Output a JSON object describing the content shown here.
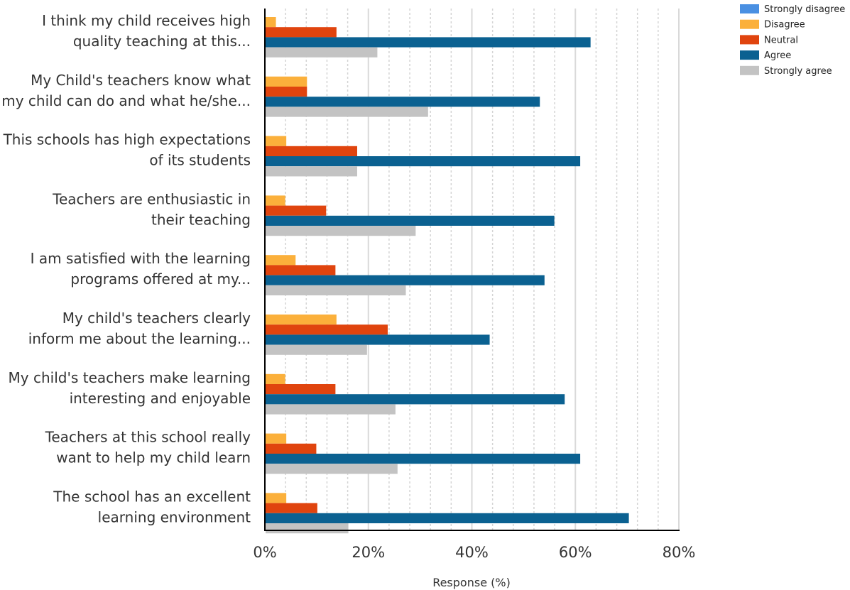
{
  "chart_data": {
    "type": "bar",
    "orientation": "horizontal",
    "xlabel": "Response (%)",
    "ylabel": "",
    "xlim": [
      0,
      80
    ],
    "x_ticks": [
      0,
      20,
      40,
      60,
      80
    ],
    "x_tick_labels": [
      "0%",
      "20%",
      "40%",
      "60%",
      "80%"
    ],
    "grid": true,
    "legend_position": "top-right",
    "categories": [
      [
        "I think my child receives high",
        "quality teaching at this..."
      ],
      [
        "My Child's teachers know what",
        "my child can do and what he/she..."
      ],
      [
        "This schools has high expectations",
        "of its students"
      ],
      [
        "Teachers are enthusiastic in",
        "their teaching"
      ],
      [
        "I am satisfied with the learning",
        "programs offered at my..."
      ],
      [
        "My child's teachers clearly",
        "inform me about the learning..."
      ],
      [
        "My child's teachers make learning",
        "interesting and enjoyable"
      ],
      [
        "Teachers at this school really",
        "want to help my child learn"
      ],
      [
        "The school has an excellent",
        "learning environment"
      ]
    ],
    "series": [
      {
        "name": "Strongly disagree",
        "color": "#4a90e2",
        "values": [
          0,
          0,
          0,
          0,
          0,
          0,
          0,
          0,
          0
        ]
      },
      {
        "name": "Disagree",
        "color": "#fbb03b",
        "values": [
          2,
          8,
          4,
          3.8,
          5.8,
          13.7,
          3.8,
          4,
          4
        ]
      },
      {
        "name": "Neutral",
        "color": "#e0440e",
        "values": [
          13.7,
          8,
          17.7,
          11.7,
          13.5,
          23.6,
          13.5,
          9.8,
          10
        ]
      },
      {
        "name": "Agree",
        "color": "#0b6191",
        "values": [
          62.8,
          53,
          60.8,
          55.8,
          53.9,
          43.3,
          57.8,
          60.8,
          70.2
        ]
      },
      {
        "name": "Strongly agree",
        "color": "#c3c3c3",
        "values": [
          21.6,
          31.4,
          17.7,
          29,
          27.1,
          19.6,
          25.1,
          25.5,
          16
        ]
      }
    ]
  }
}
